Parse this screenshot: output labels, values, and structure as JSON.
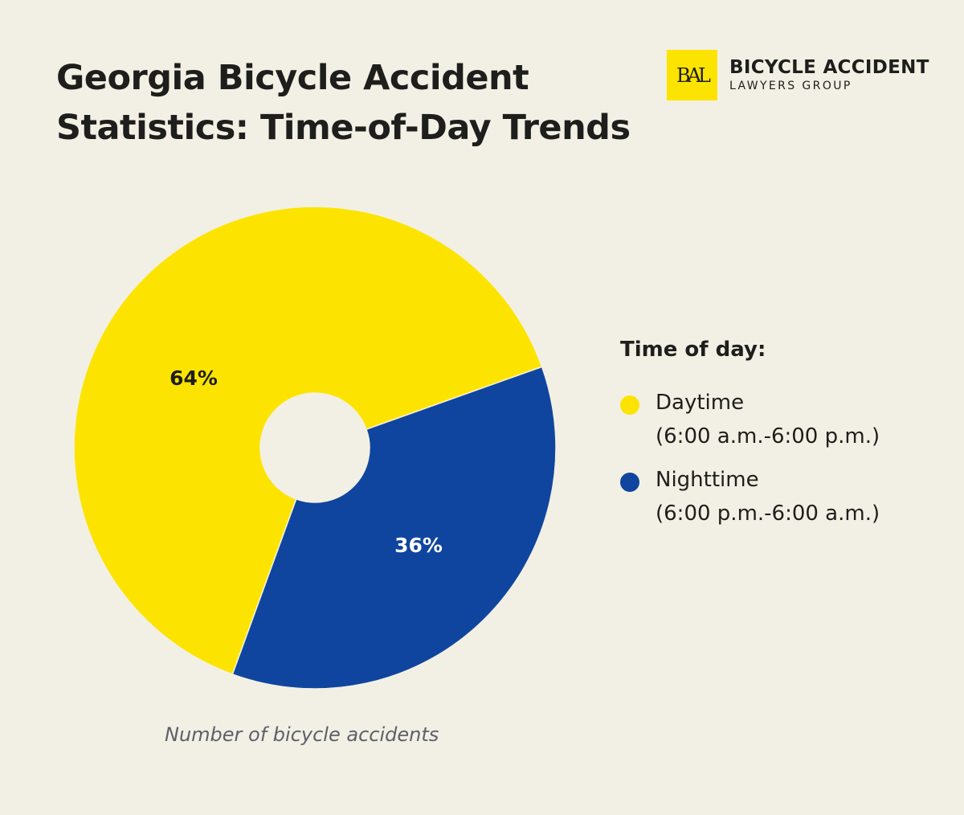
{
  "title_line1": "Georgia Bicycle Accident",
  "title_line2": "Statistics: Time-of-Day Trends",
  "logo": {
    "mark": "BAL",
    "line1": "BICYCLE ACCIDENT",
    "line2": "LAWYERS GROUP",
    "color": "#fde400"
  },
  "chart_data": {
    "type": "pie",
    "variant": "donut",
    "legend_title": "Time of day:",
    "legend_position": "right",
    "caption": "Number of bicycle accidents",
    "slices": [
      {
        "name": "Daytime",
        "detail": "(6:00 a.m.-6:00 p.m.)",
        "value": 64,
        "label": "64%",
        "color": "#fde400",
        "label_color": "#1e1e1c"
      },
      {
        "name": "Nighttime",
        "detail": "(6:00 p.m.-6:00 a.m.)",
        "value": 36,
        "label": "36%",
        "color": "#0f459e",
        "label_color": "#ffffff"
      }
    ]
  }
}
